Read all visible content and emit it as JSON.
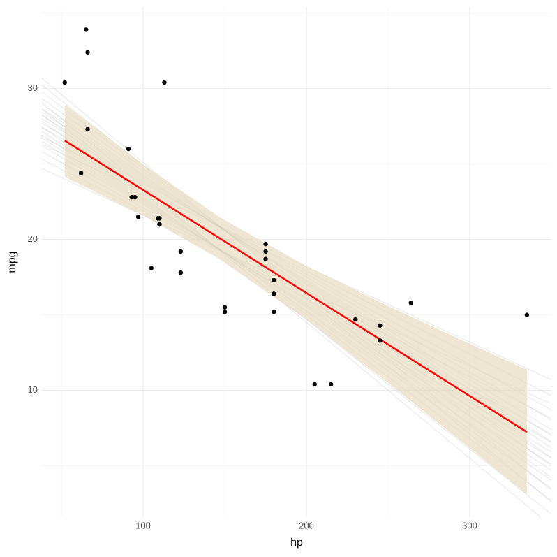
{
  "chart_data": {
    "type": "scatter",
    "xlabel": "hp",
    "ylabel": "mpg",
    "xlim": [
      38,
      350
    ],
    "ylim": [
      1.6,
      35.4
    ],
    "xticks": [
      100,
      200,
      300
    ],
    "yticks": [
      10,
      20,
      30
    ],
    "xminor": [
      50,
      150,
      250
    ],
    "yminor": [
      5,
      15,
      25,
      35
    ],
    "grid": true,
    "points": {
      "color": "#000000",
      "x": [
        110,
        110,
        93,
        110,
        175,
        105,
        245,
        62,
        95,
        123,
        123,
        180,
        180,
        180,
        205,
        215,
        230,
        66,
        52,
        65,
        97,
        150,
        150,
        245,
        175,
        66,
        91,
        113,
        264,
        175,
        335,
        109
      ],
      "y": [
        21.0,
        21.0,
        22.8,
        21.4,
        18.7,
        18.1,
        14.3,
        24.4,
        22.8,
        19.2,
        17.8,
        16.4,
        17.3,
        15.2,
        10.4,
        10.4,
        14.7,
        32.4,
        30.4,
        33.9,
        21.5,
        15.5,
        15.2,
        13.3,
        19.2,
        27.3,
        26.0,
        30.4,
        15.8,
        19.7,
        15.0,
        21.4
      ]
    },
    "fit": {
      "color": "#ff0000",
      "x": [
        52,
        335
      ],
      "values": [
        26.55,
        7.24
      ]
    },
    "band": {
      "color": "#e8dcc3",
      "x": [
        52,
        100,
        146.7,
        200,
        250,
        300,
        335
      ],
      "lower": [
        24.15,
        21.58,
        18.7,
        14.68,
        10.49,
        6.17,
        3.11
      ],
      "upper": [
        28.95,
        24.97,
        21.48,
        18.23,
        15.59,
        13.09,
        11.37
      ]
    },
    "draws": {
      "color": "#8c8c8c",
      "lines": [
        {
          "intercept": 26.6,
          "slope": -0.05
        },
        {
          "intercept": 28.2,
          "slope": -0.05
        },
        {
          "intercept": 27.4,
          "slope": -0.055
        },
        {
          "intercept": 28.9,
          "slope": -0.055
        },
        {
          "intercept": 28.1,
          "slope": -0.06
        },
        {
          "intercept": 29.7,
          "slope": -0.06
        },
        {
          "intercept": 28.6,
          "slope": -0.063
        },
        {
          "intercept": 30.1,
          "slope": -0.063
        },
        {
          "intercept": 29.0,
          "slope": -0.066
        },
        {
          "intercept": 30.5,
          "slope": -0.066
        },
        {
          "intercept": 29.3,
          "slope": -0.068
        },
        {
          "intercept": 30.8,
          "slope": -0.068
        },
        {
          "intercept": 29.6,
          "slope": -0.07
        },
        {
          "intercept": 31.1,
          "slope": -0.07
        },
        {
          "intercept": 29.9,
          "slope": -0.072
        },
        {
          "intercept": 31.4,
          "slope": -0.072
        },
        {
          "intercept": 30.3,
          "slope": -0.075
        },
        {
          "intercept": 31.8,
          "slope": -0.075
        },
        {
          "intercept": 30.8,
          "slope": -0.078
        },
        {
          "intercept": 32.3,
          "slope": -0.078
        },
        {
          "intercept": 31.4,
          "slope": -0.082
        },
        {
          "intercept": 32.9,
          "slope": -0.082
        },
        {
          "intercept": 31.9,
          "slope": -0.086
        },
        {
          "intercept": 33.5,
          "slope": -0.086
        },
        {
          "intercept": 32.5,
          "slope": -0.09
        },
        {
          "intercept": 34.1,
          "slope": -0.09
        }
      ]
    }
  }
}
